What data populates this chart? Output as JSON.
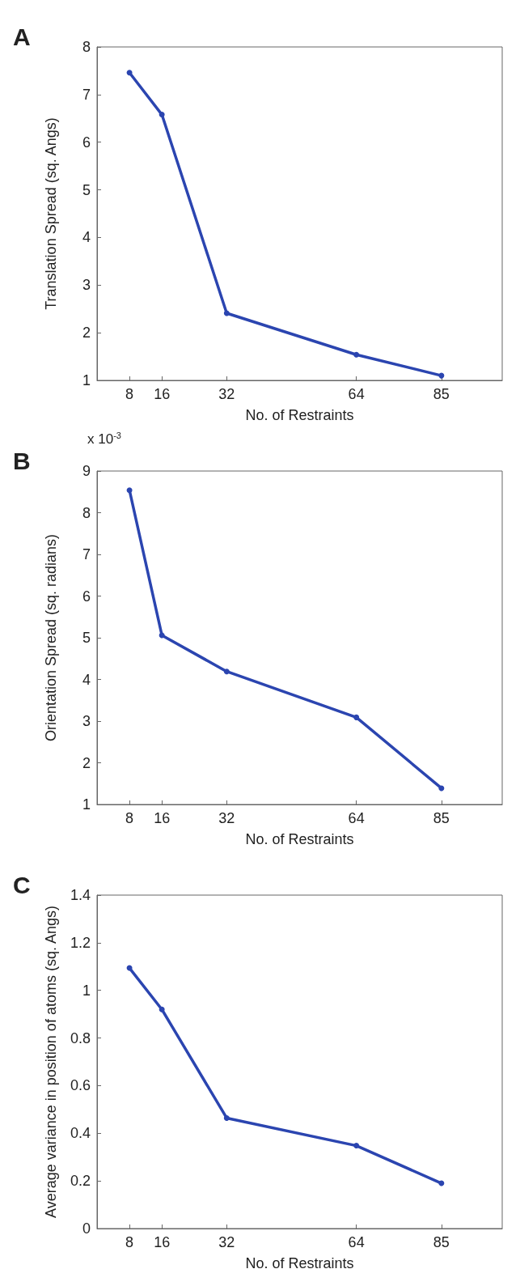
{
  "chart_data": [
    {
      "type": "line",
      "x": [
        8,
        16,
        32,
        64,
        85
      ],
      "xlim": [
        0,
        100
      ],
      "xticks": [
        8,
        16,
        32,
        64,
        85
      ],
      "ylim": [
        1,
        8
      ],
      "yticks": [
        1,
        2,
        3,
        4,
        5,
        6,
        7,
        8
      ],
      "xlabel": "No. of Restraints",
      "ylabel": "Translation Spread (sq. Angs)",
      "marker": "circle",
      "grid": false,
      "series": [
        {
          "color": "#2b45b0",
          "values": [
            7.46,
            6.58,
            2.41,
            1.54,
            1.1
          ]
        }
      ],
      "annotations": [
        "A"
      ]
    },
    {
      "type": "line",
      "x": [
        8,
        16,
        32,
        64,
        85
      ],
      "xlim": [
        0,
        100
      ],
      "xticks": [
        8,
        16,
        32,
        64,
        85
      ],
      "ylim": [
        1,
        9
      ],
      "yticks": [
        1,
        2,
        3,
        4,
        5,
        6,
        7,
        8,
        9
      ],
      "xlabel": "No. of Restraints",
      "ylabel": "Orientation Spread (sq. radians)",
      "marker": "circle",
      "grid": false,
      "series": [
        {
          "color": "#2b45b0",
          "values": [
            8.54,
            5.06,
            4.19,
            3.09,
            1.39
          ]
        }
      ],
      "annotations": [
        "B",
        "x 10$^{-3}$"
      ]
    },
    {
      "type": "line",
      "x": [
        8,
        16,
        32,
        64,
        85
      ],
      "xlim": [
        0,
        100
      ],
      "xticks": [
        8,
        16,
        32,
        64,
        85
      ],
      "ylim": [
        0,
        1.4
      ],
      "yticks": [
        0,
        0.2,
        0.4,
        0.6,
        0.8,
        1,
        1.2,
        1.4
      ],
      "xlabel": "No. of Restraints",
      "ylabel": "Average variance in position of atoms (sq. Angs)",
      "marker": "circle",
      "grid": false,
      "series": [
        {
          "color": "#2b45b0",
          "values": [
            1.094,
            0.92,
            0.464,
            0.348,
            0.19
          ]
        }
      ],
      "annotations": [
        "C"
      ]
    }
  ]
}
